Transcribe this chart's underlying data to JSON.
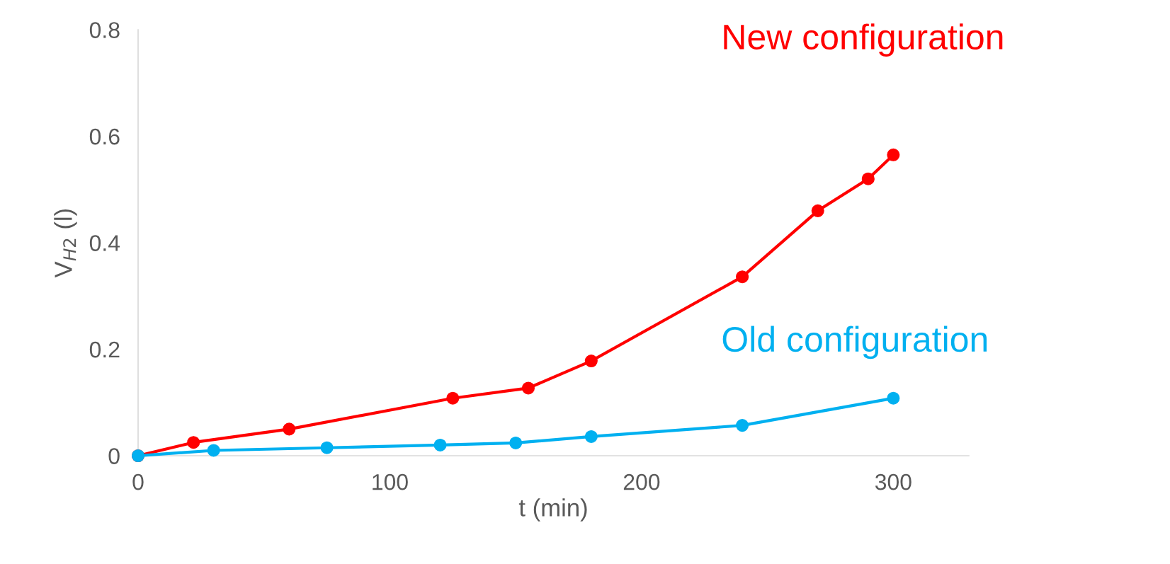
{
  "chart_data": {
    "type": "line",
    "xlabel": "t (min)",
    "ylabel": "V$_{H2}$ (l)",
    "series": [
      {
        "name": "New configuration",
        "color": "#ff0000",
        "x": [
          0,
          22,
          60,
          125,
          155,
          180,
          240,
          270,
          290,
          300
        ],
        "values": [
          0,
          0.025,
          0.05,
          0.108,
          0.127,
          0.178,
          0.336,
          0.46,
          0.52,
          0.565
        ]
      },
      {
        "name": "Old configuration",
        "color": "#00b0f0",
        "x": [
          0,
          30,
          75,
          120,
          150,
          180,
          240,
          300
        ],
        "values": [
          0,
          0.01,
          0.015,
          0.02,
          0.024,
          0.036,
          0.057,
          0.108
        ]
      }
    ],
    "xlim": [
      0,
      330
    ],
    "xticks": [
      0,
      100,
      200,
      300
    ],
    "ylim": [
      0,
      0.8
    ],
    "yticks": [
      0,
      0.2,
      0.4,
      0.6,
      0.8
    ],
    "grid": false,
    "legend": false,
    "marker": "circle",
    "line_style": "solid"
  }
}
